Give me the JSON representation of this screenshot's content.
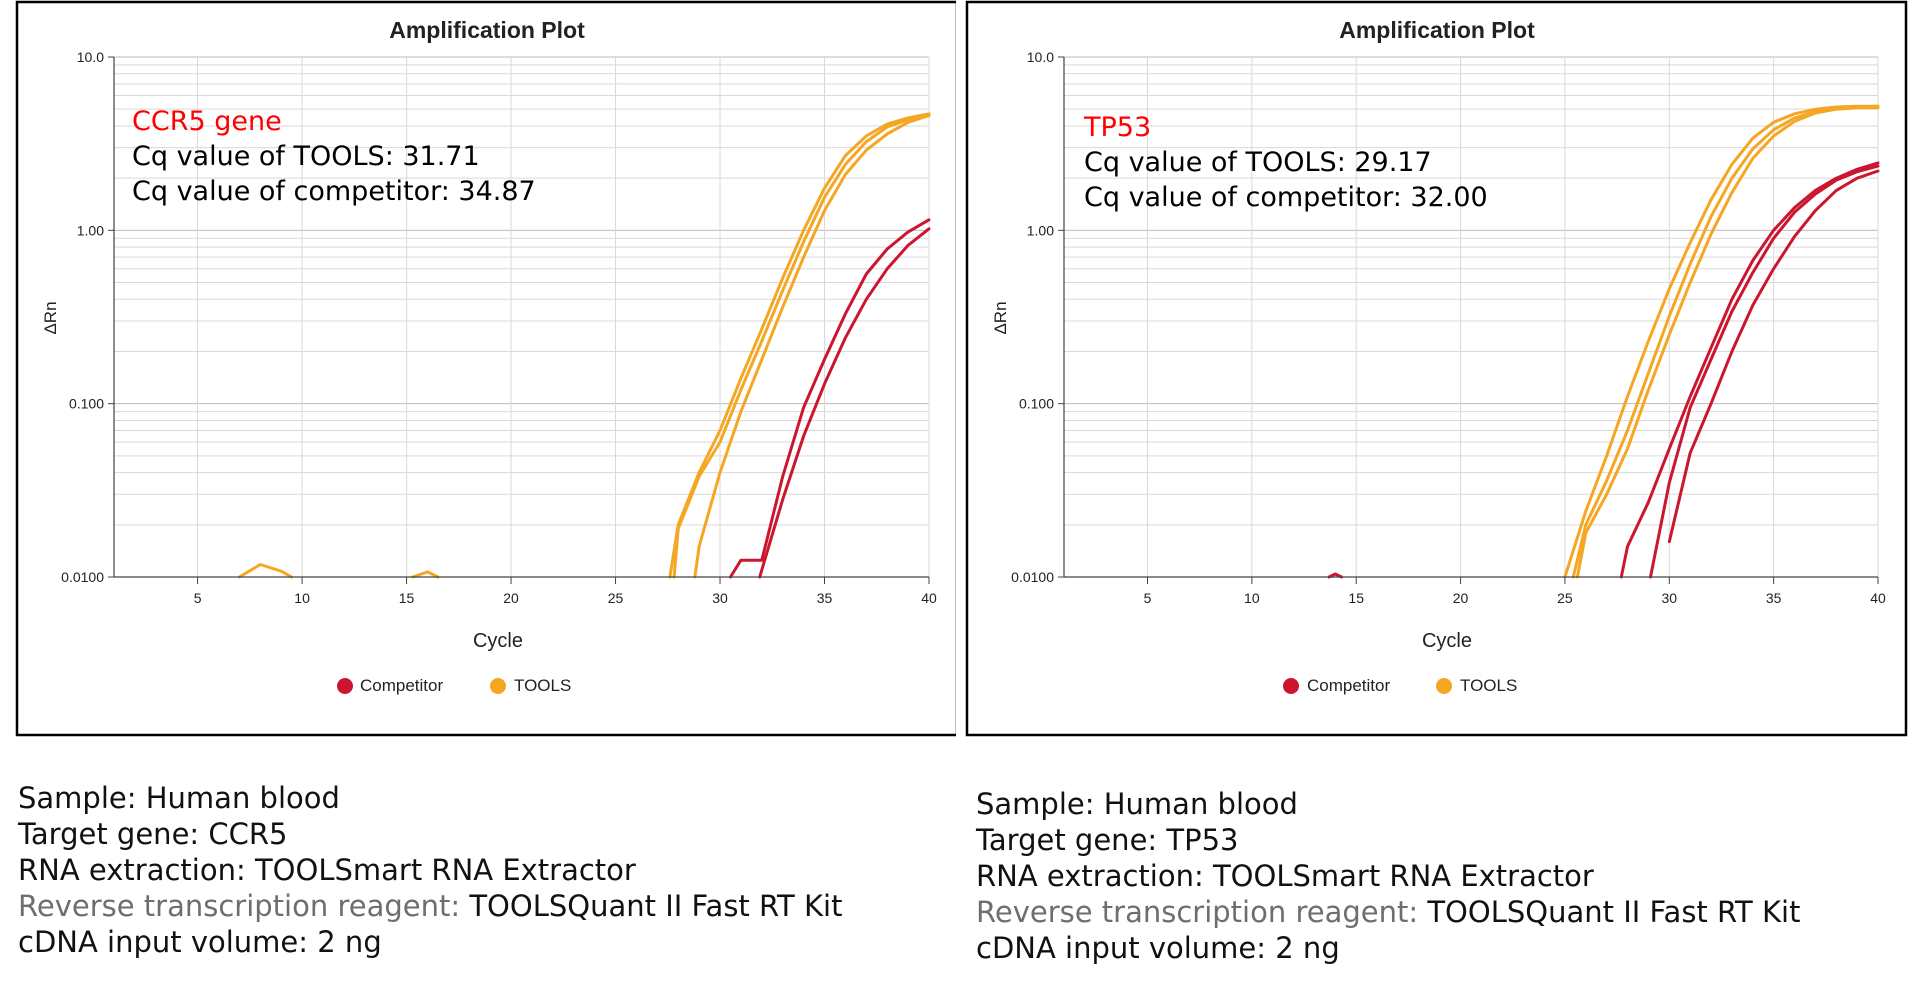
{
  "colors": {
    "competitor": "#cc1630",
    "tools": "#f5a623",
    "highlight": "#ff0000",
    "frame": "#000000",
    "grid": "#d9d9d9"
  },
  "charts": [
    {
      "title": "Amplification Plot",
      "xlabel": "Cycle",
      "ylabel": "ΔRn",
      "x_ticks": [
        "5",
        "10",
        "15",
        "20",
        "25",
        "30",
        "35",
        "40"
      ],
      "y_ticks": [
        "10.0",
        "1.00",
        "0.100",
        "0.0100"
      ],
      "legend": [
        {
          "label": "Competitor",
          "color": "#cc1630"
        },
        {
          "label": "TOOLS",
          "color": "#f5a623"
        }
      ],
      "annotation": {
        "gene": "CCR5 gene",
        "tools_line": "Cq value of TOOLS: 31.71",
        "competitor_line": "Cq value of competitor: 34.87"
      },
      "caption": {
        "sample_key": "Sample:",
        "sample_val": "Human blood",
        "target_key": "Target gene:",
        "target_val": "CCR5",
        "rna_key": "RNA extraction:",
        "rna_val": "TOOLSmart RNA Extractor",
        "rt_key": "Reverse transcription reagent:",
        "rt_val": "TOOLSQuant II Fast RT Kit",
        "cdna_key": "cDNA input volume:",
        "cdna_val": "2 ng"
      }
    },
    {
      "title": "Amplification Plot",
      "xlabel": "Cycle",
      "ylabel": "ΔRn",
      "x_ticks": [
        "5",
        "10",
        "15",
        "20",
        "25",
        "30",
        "35",
        "40"
      ],
      "y_ticks": [
        "10.0",
        "1.00",
        "0.100",
        "0.0100"
      ],
      "legend": [
        {
          "label": "Competitor",
          "color": "#cc1630"
        },
        {
          "label": "TOOLS",
          "color": "#f5a623"
        }
      ],
      "annotation": {
        "gene": "TP53",
        "tools_line": "Cq value of TOOLS: 29.17",
        "competitor_line": "Cq value of competitor: 32.00"
      },
      "caption": {
        "sample_key": "Sample:",
        "sample_val": "Human blood",
        "target_key": "Target gene:",
        "target_val": "TP53",
        "rna_key": "RNA extraction:",
        "rna_val": "TOOLSmart RNA Extractor",
        "rt_key": "Reverse transcription reagent:",
        "rt_val": "TOOLSQuant II Fast RT Kit",
        "cdna_key": "cDNA input volume:",
        "cdna_val": "2 ng"
      }
    }
  ],
  "chart_data": [
    {
      "type": "line",
      "title": "Amplification Plot",
      "xlabel": "Cycle",
      "ylabel": "ΔRn",
      "xlim": [
        1,
        40
      ],
      "ylim": [
        0.01,
        10
      ],
      "yscale": "log",
      "grid": true,
      "legend_position": "bottom",
      "series": [
        {
          "name": "TOOLS",
          "color": "#f5a623",
          "x": [
            27.6,
            28,
            29,
            30,
            31,
            32,
            33,
            34,
            35,
            36,
            37,
            38,
            39,
            40
          ],
          "y": [
            0.01,
            0.02,
            0.04,
            0.07,
            0.14,
            0.27,
            0.53,
            1.0,
            1.75,
            2.7,
            3.5,
            4.1,
            4.45,
            4.7
          ]
        },
        {
          "name": "TOOLS",
          "color": "#f5a623",
          "x": [
            27.8,
            28,
            29,
            30,
            31,
            32,
            33,
            34,
            35,
            36,
            37,
            38,
            39,
            40
          ],
          "y": [
            0.01,
            0.019,
            0.038,
            0.06,
            0.12,
            0.23,
            0.45,
            0.86,
            1.55,
            2.4,
            3.25,
            3.95,
            4.35,
            4.6
          ]
        },
        {
          "name": "TOOLS",
          "color": "#f5a623",
          "x": [
            28.8,
            29,
            30,
            31,
            32,
            33,
            34,
            35,
            36,
            37,
            38,
            39,
            40
          ],
          "y": [
            0.01,
            0.015,
            0.04,
            0.09,
            0.18,
            0.36,
            0.7,
            1.3,
            2.1,
            2.9,
            3.6,
            4.2,
            4.6
          ]
        },
        {
          "name": "TOOLS",
          "color": "#f5a623",
          "x": [
            7,
            8,
            9,
            9.5
          ],
          "y": [
            0.01,
            0.0118,
            0.0108,
            0.01
          ]
        },
        {
          "name": "TOOLS",
          "color": "#f5a623",
          "x": [
            15.3,
            16,
            16.5
          ],
          "y": [
            0.01,
            0.0107,
            0.01
          ]
        },
        {
          "name": "Competitor",
          "color": "#cc1630",
          "x": [
            30.5,
            31,
            32,
            33,
            34,
            35,
            36,
            37,
            38,
            39,
            40
          ],
          "y": [
            0.01,
            0.0125,
            0.0125,
            0.038,
            0.095,
            0.18,
            0.33,
            0.56,
            0.78,
            0.98,
            1.15
          ]
        },
        {
          "name": "Competitor",
          "color": "#cc1630",
          "x": [
            31.9,
            33,
            34,
            35,
            36,
            37,
            38,
            39,
            40
          ],
          "y": [
            0.01,
            0.028,
            0.065,
            0.13,
            0.24,
            0.4,
            0.6,
            0.82,
            1.02
          ]
        }
      ]
    },
    {
      "type": "line",
      "title": "Amplification Plot",
      "xlabel": "Cycle",
      "ylabel": "ΔRn",
      "xlim": [
        1,
        40
      ],
      "ylim": [
        0.01,
        10
      ],
      "yscale": "log",
      "grid": true,
      "legend_position": "bottom",
      "series": [
        {
          "name": "TOOLS",
          "color": "#f5a623",
          "x": [
            25,
            26,
            27,
            28,
            29,
            30,
            31,
            32,
            33,
            34,
            35,
            36,
            37,
            38,
            39,
            40
          ],
          "y": [
            0.01,
            0.024,
            0.05,
            0.11,
            0.23,
            0.46,
            0.85,
            1.5,
            2.4,
            3.4,
            4.2,
            4.7,
            5.0,
            5.15,
            5.2,
            5.2
          ]
        },
        {
          "name": "TOOLS",
          "color": "#f5a623",
          "x": [
            25.4,
            26,
            27,
            28,
            29,
            30,
            31,
            32,
            33,
            34,
            35,
            36,
            37,
            38,
            39,
            40
          ],
          "y": [
            0.01,
            0.02,
            0.036,
            0.07,
            0.15,
            0.32,
            0.64,
            1.2,
            2.0,
            2.95,
            3.8,
            4.45,
            4.85,
            5.05,
            5.15,
            5.2
          ]
        },
        {
          "name": "TOOLS",
          "color": "#f5a623",
          "x": [
            25.6,
            26,
            27,
            28,
            29,
            30,
            31,
            32,
            33,
            34,
            35,
            36,
            37,
            38,
            39,
            40
          ],
          "y": [
            0.01,
            0.018,
            0.03,
            0.055,
            0.12,
            0.25,
            0.5,
            0.95,
            1.65,
            2.6,
            3.5,
            4.25,
            4.75,
            5.0,
            5.1,
            5.1
          ]
        },
        {
          "name": "Competitor",
          "color": "#cc1630",
          "x": [
            27.7,
            28,
            29,
            30,
            31,
            32,
            33,
            34,
            35,
            36,
            37,
            38,
            39,
            40
          ],
          "y": [
            0.01,
            0.015,
            0.027,
            0.055,
            0.11,
            0.21,
            0.4,
            0.67,
            1.0,
            1.35,
            1.7,
            2.0,
            2.25,
            2.45
          ]
        },
        {
          "name": "Competitor",
          "color": "#cc1630",
          "x": [
            29.1,
            30,
            31,
            32,
            33,
            34,
            35,
            36,
            37,
            38,
            39,
            40
          ],
          "y": [
            0.01,
            0.035,
            0.095,
            0.18,
            0.34,
            0.57,
            0.9,
            1.27,
            1.62,
            1.95,
            2.18,
            2.35
          ]
        },
        {
          "name": "Competitor",
          "color": "#cc1630",
          "x": [
            30,
            31,
            32,
            33,
            34,
            35,
            36,
            37,
            38,
            39,
            40
          ],
          "y": [
            0.016,
            0.052,
            0.1,
            0.2,
            0.37,
            0.6,
            0.92,
            1.3,
            1.7,
            2.0,
            2.2
          ]
        },
        {
          "name": "Competitor",
          "color": "#cc1630",
          "x": [
            13.7,
            14,
            14.3
          ],
          "y": [
            0.01,
            0.0104,
            0.01
          ]
        }
      ]
    }
  ]
}
